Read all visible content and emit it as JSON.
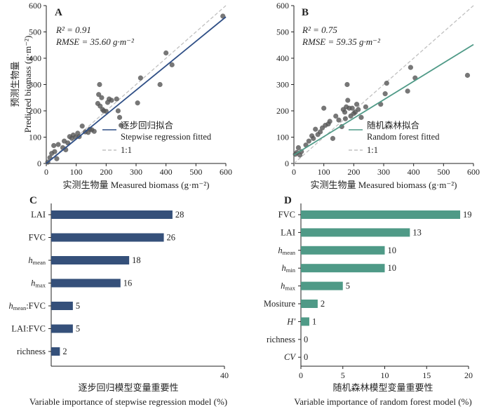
{
  "chart_data": [
    {
      "panel": "A",
      "type": "scatter",
      "xlabel": "实测生物量 Measured biomass (g·m⁻²)",
      "ylabel_cn": "预测生物量",
      "ylabel_en": "Predicted biomass (g·m⁻²)",
      "xlim": [
        0,
        600
      ],
      "ylim": [
        0,
        600
      ],
      "xticks": [
        "0",
        "100",
        "200",
        "300",
        "400",
        "500",
        "600"
      ],
      "yticks": [
        "0",
        "100",
        "200",
        "300",
        "400",
        "500",
        "600"
      ],
      "stats": {
        "r2_label": "R² = 0.91",
        "rmse_label": "RMSE = 35.60 g·m⁻²"
      },
      "legend": {
        "fit_cn": "逐步回归拟合",
        "fit_en": "Stepwise regression fitted",
        "ref": "1:1"
      },
      "fit_line": {
        "x": [
          0,
          600
        ],
        "y": [
          0,
          557
        ]
      },
      "points": [
        [
          5,
          5
        ],
        [
          12,
          22
        ],
        [
          18,
          38
        ],
        [
          25,
          68
        ],
        [
          28,
          45
        ],
        [
          35,
          18
        ],
        [
          40,
          72
        ],
        [
          55,
          60
        ],
        [
          60,
          85
        ],
        [
          65,
          52
        ],
        [
          72,
          78
        ],
        [
          78,
          102
        ],
        [
          85,
          96
        ],
        [
          90,
          108
        ],
        [
          98,
          100
        ],
        [
          105,
          115
        ],
        [
          110,
          102
        ],
        [
          120,
          142
        ],
        [
          130,
          120
        ],
        [
          140,
          118
        ],
        [
          145,
          130
        ],
        [
          152,
          128
        ],
        [
          160,
          122
        ],
        [
          172,
          228
        ],
        [
          175,
          262
        ],
        [
          178,
          300
        ],
        [
          180,
          218
        ],
        [
          185,
          250
        ],
        [
          188,
          205
        ],
        [
          192,
          200
        ],
        [
          200,
          198
        ],
        [
          205,
          232
        ],
        [
          210,
          245
        ],
        [
          218,
          240
        ],
        [
          235,
          245
        ],
        [
          240,
          200
        ],
        [
          245,
          175
        ],
        [
          250,
          145
        ],
        [
          305,
          230
        ],
        [
          315,
          325
        ],
        [
          380,
          300
        ],
        [
          400,
          420
        ],
        [
          420,
          375
        ],
        [
          590,
          560
        ]
      ]
    },
    {
      "panel": "B",
      "type": "scatter",
      "xlabel": "实测生物量 Measured biomass (g·m⁻²)",
      "xlim": [
        0,
        600
      ],
      "ylim": [
        0,
        600
      ],
      "xticks": [
        "0",
        "100",
        "200",
        "300",
        "400",
        "500",
        "600"
      ],
      "yticks": [
        "0",
        "100",
        "200",
        "300",
        "400",
        "500",
        "600"
      ],
      "stats": {
        "r2_label": "R² = 0.75",
        "rmse_label": "RMSE = 59.35 g·m⁻²"
      },
      "legend": {
        "fit_cn": "随机森林拟合",
        "fit_en": "Random forest fitted",
        "ref": "1:1"
      },
      "fit_line": {
        "x": [
          0,
          600
        ],
        "y": [
          32,
          452
        ]
      },
      "points": [
        [
          5,
          35
        ],
        [
          10,
          42
        ],
        [
          15,
          60
        ],
        [
          20,
          32
        ],
        [
          25,
          45
        ],
        [
          40,
          70
        ],
        [
          50,
          85
        ],
        [
          60,
          105
        ],
        [
          65,
          95
        ],
        [
          72,
          130
        ],
        [
          80,
          110
        ],
        [
          88,
          120
        ],
        [
          95,
          135
        ],
        [
          100,
          210
        ],
        [
          105,
          145
        ],
        [
          115,
          150
        ],
        [
          120,
          160
        ],
        [
          130,
          95
        ],
        [
          140,
          180
        ],
        [
          150,
          165
        ],
        [
          160,
          140
        ],
        [
          165,
          205
        ],
        [
          170,
          195
        ],
        [
          172,
          170
        ],
        [
          175,
          215
        ],
        [
          178,
          300
        ],
        [
          180,
          240
        ],
        [
          185,
          210
        ],
        [
          190,
          180
        ],
        [
          195,
          210
        ],
        [
          200,
          190
        ],
        [
          205,
          195
        ],
        [
          210,
          225
        ],
        [
          215,
          205
        ],
        [
          225,
          175
        ],
        [
          240,
          215
        ],
        [
          290,
          225
        ],
        [
          305,
          265
        ],
        [
          310,
          305
        ],
        [
          380,
          275
        ],
        [
          390,
          365
        ],
        [
          405,
          325
        ],
        [
          580,
          335
        ]
      ]
    },
    {
      "panel": "C",
      "type": "bar",
      "orientation": "horizontal",
      "title_cn": "逐步回归模型变量重要性",
      "xlabel": "Variable importance of stepwise regression model (%)",
      "xlim": [
        0,
        40
      ],
      "xticks": [
        "40"
      ],
      "categories": [
        "LAI",
        "FVC",
        "h_mean",
        "h_max",
        "h_mean:FVC",
        "LAI:FVC",
        "richness"
      ],
      "values": [
        28,
        26,
        18,
        16,
        5,
        5,
        2
      ],
      "value_labels": [
        "28",
        "26",
        "18",
        "16",
        "5",
        "5",
        "2"
      ],
      "color": "#35507a"
    },
    {
      "panel": "D",
      "type": "bar",
      "orientation": "horizontal",
      "title_cn": "随机森林模型变量重要性",
      "xlabel": "Variable importance of random forest model (%)",
      "xlim": [
        0,
        20
      ],
      "xticks": [
        "0",
        "5",
        "10",
        "15",
        "20"
      ],
      "categories": [
        "FVC",
        "LAI",
        "h_mean",
        "h_min",
        "h_max",
        "Mositure",
        "H'",
        "richness",
        "CV"
      ],
      "values": [
        19,
        13,
        10,
        10,
        5,
        2,
        1,
        0,
        0
      ],
      "value_labels": [
        "19",
        "13",
        "10",
        "10",
        "5",
        "2",
        "1",
        "0",
        "0"
      ],
      "color": "#4f9a87"
    }
  ],
  "colors": {
    "blue": "#2f4f86",
    "teal": "#4f9a87",
    "dashed": "#c0c0c0",
    "point": "#555555"
  }
}
